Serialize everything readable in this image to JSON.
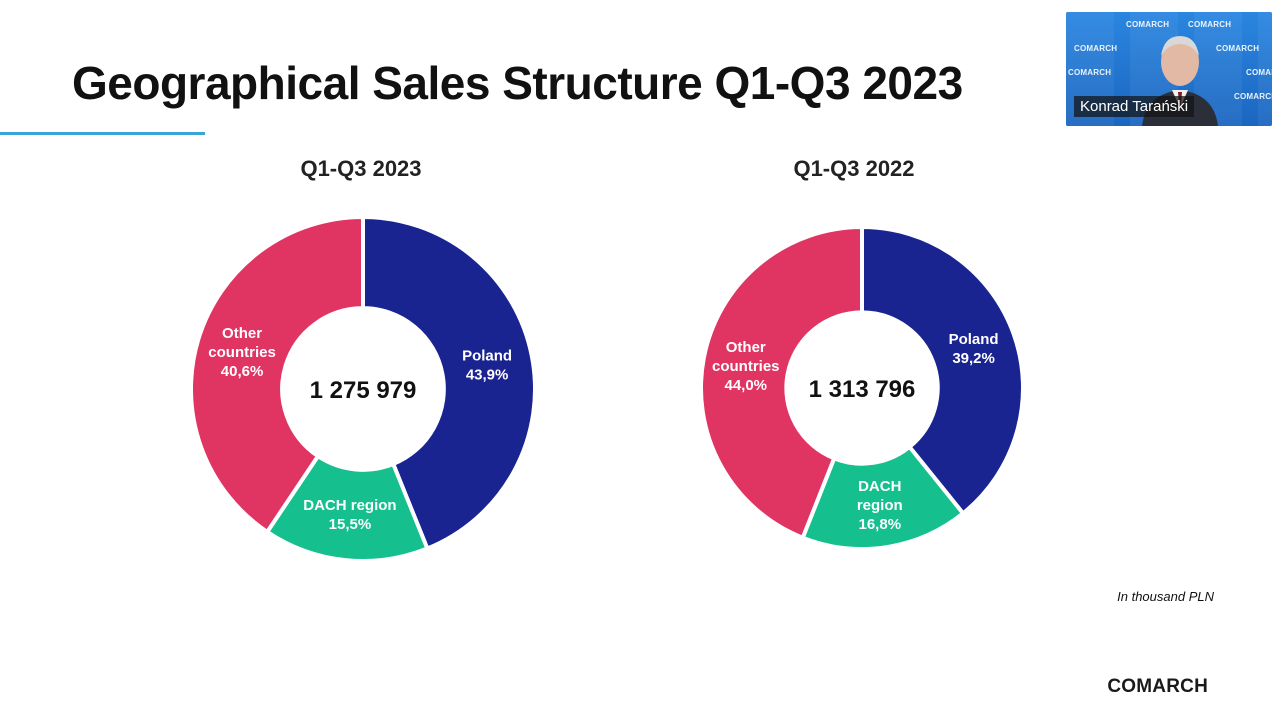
{
  "slide": {
    "title": "Geographical Sales Structure Q1-Q3 2023",
    "unit_note": "In thousand PLN",
    "logo": "COMARCH"
  },
  "video_call": {
    "participant_name": "Konrad Tarański",
    "backdrop_text": "COMARCH"
  },
  "colors": {
    "poland": "#1a2491",
    "dach": "#15c08e",
    "other": "#e03462",
    "title_rule": "#3aa3d8"
  },
  "chart_data": [
    {
      "type": "pie",
      "title": "Q1-Q3 2023",
      "total_label": "1 275 979",
      "slices": [
        {
          "label_lines": [
            "Poland",
            "43,9%"
          ],
          "value": 43.9,
          "color": "#1a2491"
        },
        {
          "label_lines": [
            "DACH region",
            "15,5%"
          ],
          "value": 15.5,
          "color": "#15c08e"
        },
        {
          "label_lines": [
            "Other",
            "countries",
            "40,6%"
          ],
          "value": 40.6,
          "color": "#e03462"
        }
      ]
    },
    {
      "type": "pie",
      "title": "Q1-Q3 2022",
      "total_label": "1 313 796",
      "slices": [
        {
          "label_lines": [
            "Poland",
            "39,2%"
          ],
          "value": 39.2,
          "color": "#1a2491"
        },
        {
          "label_lines": [
            "DACH",
            "region",
            "16,8%"
          ],
          "value": 16.8,
          "color": "#15c08e"
        },
        {
          "label_lines": [
            "Other",
            "countries",
            "44,0%"
          ],
          "value": 44.0,
          "color": "#e03462"
        }
      ]
    }
  ]
}
